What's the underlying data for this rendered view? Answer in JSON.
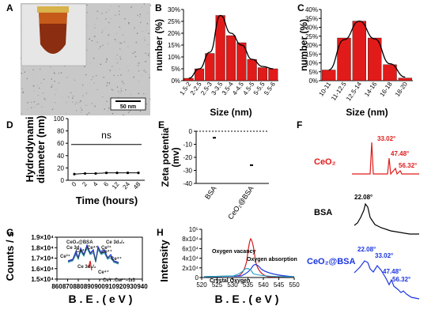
{
  "panel_letters": [
    "A",
    "B",
    "C",
    "D",
    "E",
    "F",
    "G",
    "H"
  ],
  "panel_A": {
    "scale_bar": "50 nm"
  },
  "chart_data": [
    {
      "panel": "B",
      "type": "bar",
      "categories": [
        "1.5-2",
        "2-2.5",
        "2.5-3",
        "3-3.5",
        "3.5-4",
        "4-4.5",
        "4.5-5",
        "5-5.5",
        "5.5-6"
      ],
      "values": [
        1,
        5,
        11.5,
        27.5,
        19,
        16,
        9,
        5.5,
        5
      ],
      "fit_line": [
        1,
        5,
        12,
        27.5,
        20,
        15,
        9,
        6,
        5
      ],
      "xlabel": "Size (nm)",
      "ylabel": "number (%)",
      "yticks": [
        "0%",
        "5%",
        "10%",
        "15%",
        "20%",
        "25%",
        "30%"
      ],
      "ylim": [
        0,
        30
      ],
      "bar_color": "#e11a1a"
    },
    {
      "panel": "C",
      "type": "bar",
      "categories": [
        "10-11",
        "11-12.5",
        "12.5-14",
        "14-16",
        "16-18",
        "18-20"
      ],
      "values": [
        6,
        24,
        33.5,
        24,
        9,
        1.5
      ],
      "fit_line": [
        6,
        23,
        33.5,
        23.5,
        9.5,
        2
      ],
      "xlabel": "Size (nm)",
      "ylabel": "number (%)",
      "yticks": [
        "0%",
        "5%",
        "10%",
        "15%",
        "20%",
        "25%",
        "30%",
        "35%",
        "40%"
      ],
      "ylim": [
        0,
        40
      ],
      "bar_color": "#e11a1a"
    },
    {
      "panel": "D",
      "type": "line",
      "x": [
        "0",
        "2",
        "4",
        "6",
        "12",
        "24",
        "48"
      ],
      "values": [
        10,
        11,
        11,
        12,
        12,
        12,
        12
      ],
      "annotation": "ns",
      "reference_line": 58,
      "xlabel": "Time (hours)",
      "ylabel": "Hydrodynami diameter (nm)",
      "yticks": [
        "0",
        "20",
        "40",
        "60",
        "80",
        "100"
      ],
      "ylim": [
        0,
        100
      ]
    },
    {
      "panel": "E",
      "type": "scatter",
      "categories": [
        "BSA",
        "CeO₂@BSA"
      ],
      "values": [
        -5,
        -26
      ],
      "xlabel": "",
      "ylabel": "Zeta potentia (mv)",
      "yticks": [
        "0",
        "-10",
        "-20",
        "-30",
        "-40"
      ],
      "ylim": [
        -40,
        0
      ]
    },
    {
      "panel": "F",
      "type": "line",
      "series": [
        {
          "name": "CeO₂",
          "color": "#e11a1a",
          "peaks": [
            "33.02°",
            "47.48°",
            "56.32°"
          ]
        },
        {
          "name": "BSA",
          "color": "#000000",
          "peaks": [
            "22.08°"
          ]
        },
        {
          "name": "CeO₂@BSA",
          "color": "#1a35e0",
          "peaks": [
            "22.08°",
            "33.02°",
            "47.48°",
            "56.32°"
          ]
        }
      ]
    },
    {
      "panel": "G",
      "type": "line",
      "x_range": [
        860,
        940
      ],
      "xticks": [
        "860",
        "870",
        "880",
        "890",
        "900",
        "910",
        "920",
        "930",
        "940"
      ],
      "yticks": [
        "1.5×10⁴",
        "1.6×10⁴",
        "1.7×10⁴",
        "1.8×10⁴",
        "1.9×10⁴"
      ],
      "ylim": [
        15000,
        19000
      ],
      "xlabel": "B . E . ( e V )",
      "ylabel": "Counts / s",
      "annotations": [
        "CeO₂@BSA",
        "Ce 3d",
        "Ce³⁺",
        "Ce⁴⁺",
        "Ce⁴⁺",
        "Ce³⁺",
        "Ce 3d₃/₂",
        "Ce⁴⁺",
        "Ce⁴⁺",
        "Ce 3d₅/₂",
        "Ce⁴⁺",
        "Ce³⁺:Ce⁴⁺=1:3"
      ]
    },
    {
      "panel": "H",
      "type": "line",
      "x_range": [
        520,
        550
      ],
      "xticks": [
        "520",
        "525",
        "530",
        "535",
        "540",
        "545",
        "550"
      ],
      "yticks": [
        "0",
        "2x10⁴",
        "4x10⁴",
        "6x10⁴",
        "8x10⁴",
        "10⁵"
      ],
      "ylim": [
        0,
        100000
      ],
      "xlabel": "B . E . ( e V )",
      "ylabel": "Intensity",
      "series": [
        {
          "name": "Oxygen vacancy",
          "color": "#d11a1a"
        },
        {
          "name": "Oxygen absorption",
          "color": "#1a35e0"
        },
        {
          "name": "Crystal Oxygen",
          "color": "#2aa7c8"
        }
      ]
    }
  ]
}
